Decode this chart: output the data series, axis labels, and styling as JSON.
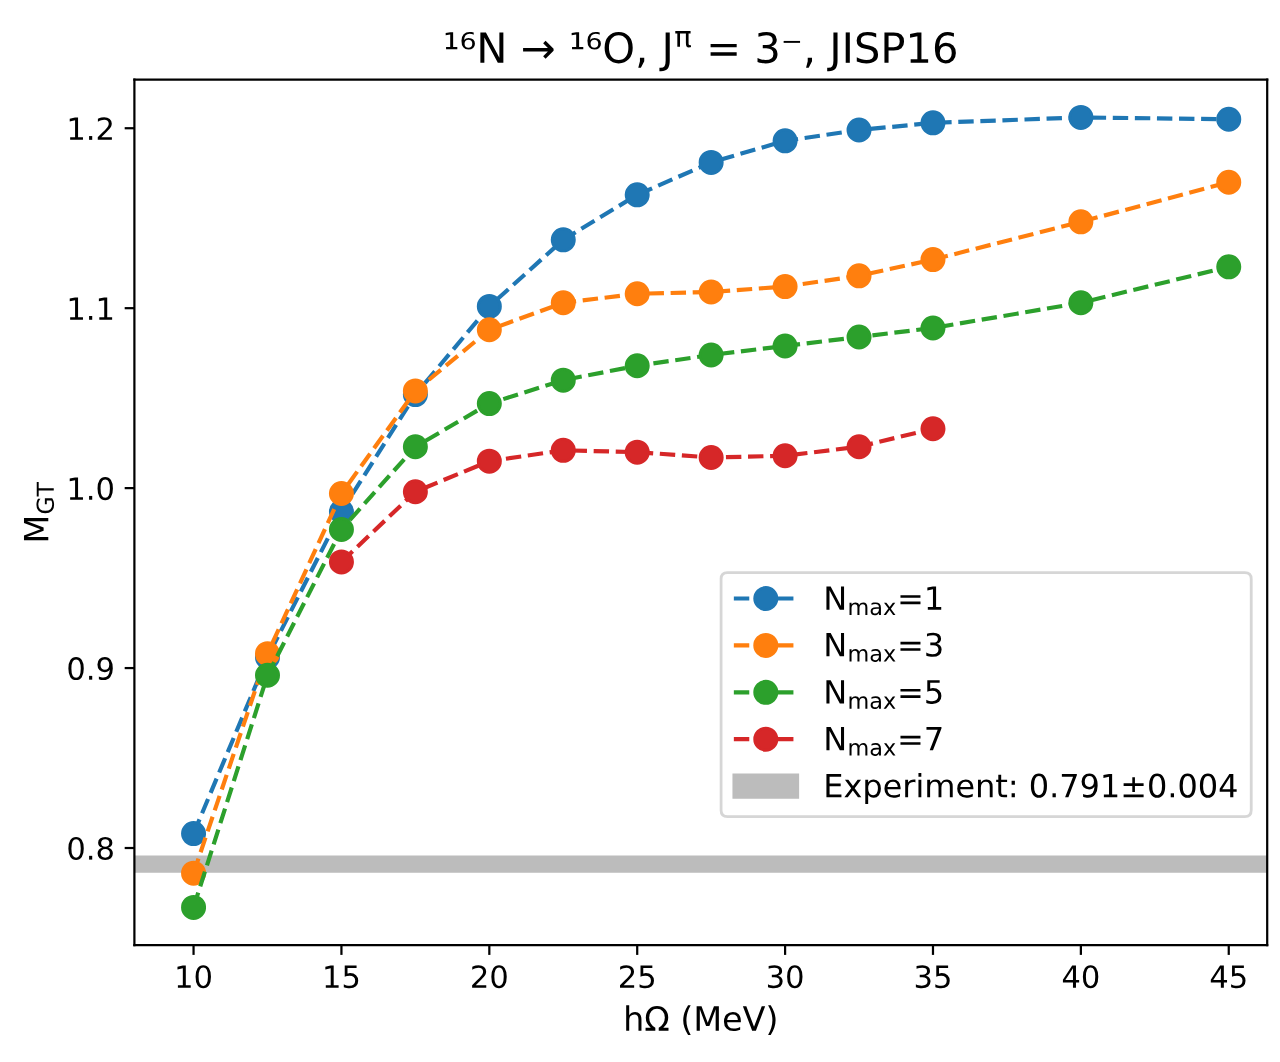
{
  "chart_data": {
    "type": "line",
    "title": "¹⁶N → ¹⁶O, J$^{π}$ = 3⁻, JISP16",
    "xlabel": "hΩ (MeV)",
    "ylabel": "M$_{GT}$",
    "x": [
      10,
      12.5,
      15,
      17.5,
      20,
      22.5,
      25,
      27.5,
      30,
      32.5,
      35,
      40,
      45
    ],
    "series": [
      {
        "name": "N$_{max}$=1",
        "color": "#1f77b4",
        "values": [
          0.808,
          0.906,
          0.987,
          1.052,
          1.101,
          1.138,
          1.163,
          1.181,
          1.193,
          1.199,
          1.203,
          1.206,
          1.205
        ]
      },
      {
        "name": "N$_{max}$=3",
        "color": "#ff7f0e",
        "values": [
          0.786,
          0.908,
          0.997,
          1.054,
          1.088,
          1.103,
          1.108,
          1.109,
          1.112,
          1.118,
          1.127,
          1.148,
          1.17
        ]
      },
      {
        "name": "N$_{max}$=5",
        "color": "#2ca02c",
        "values": [
          0.767,
          0.896,
          0.977,
          1.023,
          1.047,
          1.06,
          1.068,
          1.074,
          1.079,
          1.084,
          1.089,
          1.103,
          1.123
        ]
      },
      {
        "name": "N$_{max}$=7",
        "color": "#d62728",
        "values": [
          null,
          null,
          0.959,
          0.998,
          1.015,
          1.021,
          1.02,
          1.017,
          1.018,
          1.023,
          1.033,
          null,
          null
        ]
      }
    ],
    "bands": [
      {
        "axis": "y",
        "from": 0.787,
        "to": 0.795,
        "label": "Experiment: 0.791±0.004",
        "color": "#a0a0a0"
      }
    ],
    "xlim": [
      8,
      46.3
    ],
    "ylim": [
      0.746,
      1.227
    ],
    "xticks": [
      10,
      15,
      20,
      25,
      30,
      35,
      40,
      45
    ],
    "yticks": [
      0.8,
      0.9,
      {
        "value": 1.0,
        "label": "1.0"
      },
      1.1,
      1.2
    ],
    "marker": "circle",
    "line_style": "dashed",
    "legend": "bottom right",
    "grid": false
  }
}
